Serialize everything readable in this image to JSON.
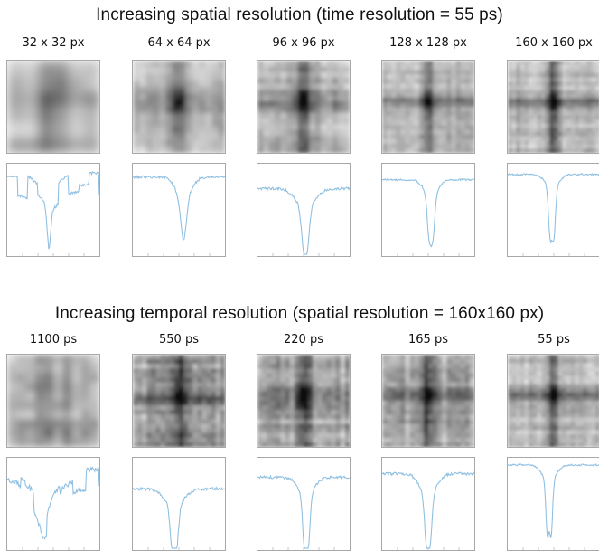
{
  "top_section": {
    "title": "Increasing spatial resolution (time resolution = 55 ps)",
    "columns": [
      {
        "label": "32 x 32 px"
      },
      {
        "label": "64 x 64 px"
      },
      {
        "label": "96 x 96 px"
      },
      {
        "label": "128 x 128 px"
      },
      {
        "label": "160 x 160 px"
      }
    ]
  },
  "bottom_section": {
    "title": "Increasing temporal resolution (spatial resolution = 160x160 px)",
    "columns": [
      {
        "label": "1100 ps"
      },
      {
        "label": "550 ps"
      },
      {
        "label": "220 ps"
      },
      {
        "label": "165 ps"
      },
      {
        "label": "55 ps"
      }
    ]
  },
  "colors": {
    "profile_line": "#8fbfe0",
    "panel_border": "#a8a8a8"
  }
}
